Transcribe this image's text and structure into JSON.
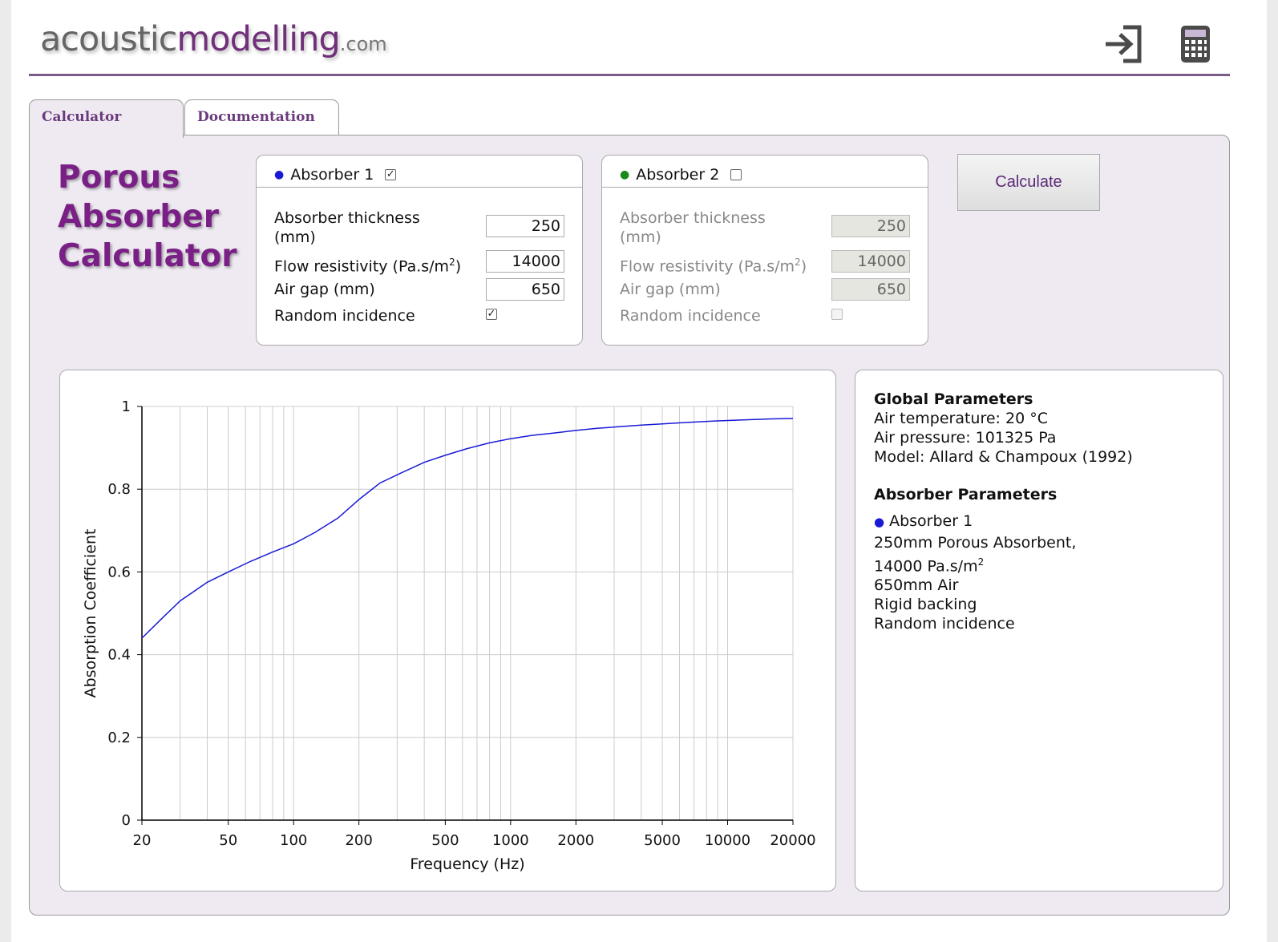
{
  "header": {
    "logo_main": "acoustic",
    "logo_accent": "modelling",
    "logo_suffix": ".com",
    "login_icon": "sign-in-icon",
    "calculator_icon": "calculator-icon"
  },
  "tabs": [
    {
      "label": "Calculator",
      "active": true
    },
    {
      "label": "Documentation",
      "active": false
    }
  ],
  "title_lines": [
    "Porous",
    "Absorber",
    "Calculator"
  ],
  "absorber1": {
    "title": "Absorber 1",
    "dot_color": "#1a1ad6",
    "enabled": true,
    "thickness_label_1": "Absorber thickness",
    "thickness_label_2": "(mm)",
    "thickness": "250",
    "flow_label": "Flow resistivity (Pa.s/m",
    "flow_sup": "2",
    "flow_label_end": ")",
    "flow": "14000",
    "airgap_label": "Air gap (mm)",
    "airgap": "650",
    "random_label": "Random incidence",
    "random": true
  },
  "absorber2": {
    "title": "Absorber 2",
    "dot_color": "#1a8a1a",
    "enabled": false,
    "thickness_label_1": "Absorber thickness",
    "thickness_label_2": "(mm)",
    "thickness": "250",
    "flow_label": "Flow resistivity (Pa.s/m",
    "flow_sup": "2",
    "flow_label_end": ")",
    "flow": "14000",
    "airgap_label": "Air gap (mm)",
    "airgap": "650",
    "random_label": "Random incidence",
    "random": false
  },
  "calculate_label": "Calculate",
  "info": {
    "global_heading": "Global Parameters",
    "air_temp": "Air temperature: 20 °C",
    "air_pressure": "Air pressure: 101325 Pa",
    "model": "Model: Allard & Champoux (1992)",
    "absorber_heading": "Absorber Parameters",
    "absorber_name": "Absorber 1",
    "line1": "250mm Porous Absorbent,",
    "line2": "14000 Pa.s/m",
    "line2_sup": "2",
    "line3": "650mm Air",
    "line4": "Rigid backing",
    "line5": "Random incidence",
    "dot_color": "#1a1ad6"
  },
  "chart_data": {
    "type": "line",
    "xlabel": "Frequency (Hz)",
    "ylabel": "Absorption Coefficient",
    "x_scale": "log",
    "xlim": [
      20,
      20000
    ],
    "ylim": [
      0,
      1
    ],
    "x_ticks": [
      20,
      50,
      100,
      200,
      500,
      1000,
      2000,
      5000,
      10000,
      20000
    ],
    "x_tick_labels": [
      "20",
      "50",
      "100",
      "200",
      "500",
      "1000",
      "2000",
      "5000",
      "10000",
      "20000"
    ],
    "y_ticks": [
      0,
      0.2,
      0.4,
      0.6,
      0.8,
      1
    ],
    "y_tick_labels": [
      "0",
      "0.2",
      "0.4",
      "0.6",
      "0.8",
      "1"
    ],
    "grid": true,
    "series": [
      {
        "color": "#1a1ad6",
        "x": [
          20,
          25,
          30,
          40,
          50,
          63,
          80,
          100,
          125,
          160,
          200,
          250,
          315,
          400,
          500,
          630,
          800,
          1000,
          1250,
          1600,
          2000,
          2500,
          3150,
          4000,
          5000,
          6300,
          8000,
          10000,
          12500,
          16000,
          20000
        ],
        "y": [
          0.44,
          0.49,
          0.53,
          0.575,
          0.6,
          0.625,
          0.648,
          0.668,
          0.695,
          0.73,
          0.775,
          0.815,
          0.84,
          0.865,
          0.882,
          0.898,
          0.912,
          0.922,
          0.93,
          0.936,
          0.942,
          0.947,
          0.951,
          0.955,
          0.958,
          0.961,
          0.964,
          0.966,
          0.968,
          0.97,
          0.971
        ]
      }
    ]
  }
}
